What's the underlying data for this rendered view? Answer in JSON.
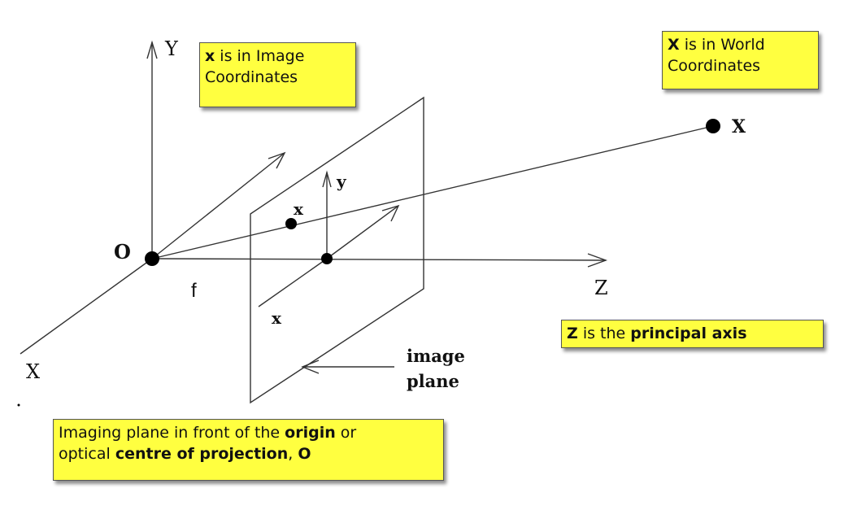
{
  "axes": {
    "world_y": "Y",
    "world_x": "X",
    "principal": "Z",
    "image_y": "y",
    "image_x": "x"
  },
  "points": {
    "origin": "O",
    "image_point": "x",
    "world_point": "X"
  },
  "focal_length": "f",
  "plane_label": {
    "line1": "image",
    "line2": "plane"
  },
  "notes": {
    "image_coords": {
      "bold": "x",
      "text1": " is in Image",
      "text2": "Coordinates"
    },
    "world_coords": {
      "bold": "X",
      "text1": " is in World",
      "text2": "Coordinates"
    },
    "principal_axis": {
      "bold1": "Z",
      "text1": " is the ",
      "bold2": "principal axis"
    },
    "imaging_plane": {
      "text1": "Imaging plane in front of the ",
      "bold1": "origin",
      "text2": " or",
      "text3": "optical ",
      "bold2": "centre of projection",
      "text4": ", ",
      "bold3": "O"
    }
  }
}
